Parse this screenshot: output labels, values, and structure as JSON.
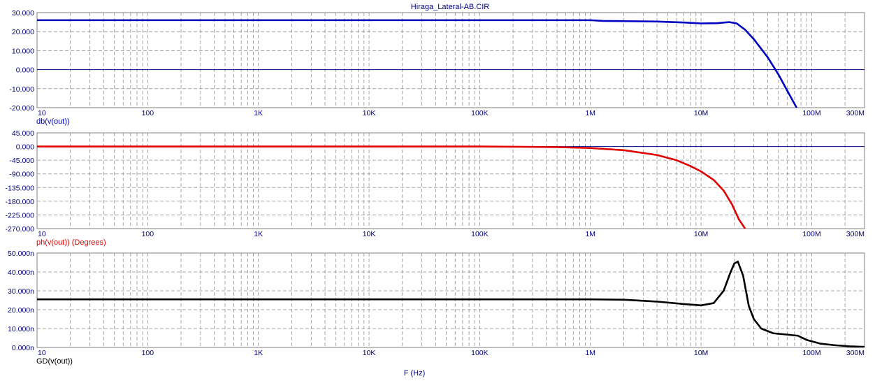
{
  "chart_data": {
    "type": "line",
    "title": "Hiraga_Lateral-AB.CIR",
    "xlabel": "F (Hz)",
    "x_scale": "log",
    "xlim": [
      10,
      300000000
    ],
    "x_tick_labels": [
      "10",
      "100",
      "1K",
      "10K",
      "100K",
      "1M",
      "10M",
      "100M",
      "300M"
    ],
    "grid": true,
    "panels": [
      {
        "ylabel": "db(v(out))",
        "color": "#0000c0",
        "ylim": [
          -20,
          30
        ],
        "y_tick_labels": [
          "30.000",
          "20.000",
          "10.000",
          "0.000",
          "-10.000",
          "-20.000"
        ],
        "series": [
          {
            "x": [
              10,
              100,
              1000,
              10000,
              100000,
              1000000,
              1300000,
              2000000,
              4000000,
              7000000,
              10000000,
              14000000,
              18000000,
              21000000,
              25000000,
              30000000,
              40000000,
              50000000,
              60000000,
              73000000
            ],
            "values": [
              26.0,
              26.0,
              26.0,
              26.0,
              26.0,
              26.0,
              25.6,
              25.5,
              25.3,
              24.8,
              24.3,
              24.4,
              25.0,
              24.3,
              21.0,
              16.0,
              6.5,
              -2.5,
              -11.0,
              -20.0
            ]
          }
        ]
      },
      {
        "ylabel": "ph(v(out)) (Degrees)",
        "color": "#e00000",
        "ylim": [
          -270,
          45
        ],
        "y_tick_labels": [
          "45.000",
          "0.000",
          "-45.000",
          "-90.000",
          "-135.000",
          "-180.000",
          "-225.000",
          "-270.000"
        ],
        "series": [
          {
            "x": [
              10,
              100,
              1000,
              10000,
              100000,
              250000,
              500000,
              1000000,
              2000000,
              4000000,
              6000000,
              8000000,
              10000000,
              13000000,
              16000000,
              19000000,
              22000000,
              25000000
            ],
            "values": [
              0,
              0,
              0,
              0,
              0,
              -1,
              -2,
              -5,
              -12,
              -28,
              -45,
              -64,
              -82,
              -110,
              -145,
              -190,
              -240,
              -270
            ]
          }
        ]
      },
      {
        "ylabel": "GD(v(out))",
        "color": "#000000",
        "ylim": [
          0,
          50
        ],
        "y_tick_labels": [
          "50.000n",
          "40.000n",
          "30.000n",
          "20.000n",
          "10.000n",
          "0.000n"
        ],
        "series": [
          {
            "x": [
              10,
              100,
              1000,
              10000,
              100000,
              1000000,
              2000000,
              4000000,
              7000000,
              10000000,
              13000000,
              16000000,
              18500000,
              20000000,
              21500000,
              24000000,
              27000000,
              30000000,
              35000000,
              45000000,
              60000000,
              75000000,
              90000000,
              120000000,
              160000000,
              220000000,
              300000000
            ],
            "values": [
              25.5,
              25.5,
              25.5,
              25.5,
              25.5,
              25.5,
              25.3,
              24.3,
              23.0,
              22.3,
              23.5,
              30.0,
              40.0,
              44.5,
              45.5,
              38.0,
              22.0,
              15.0,
              10.0,
              7.5,
              6.8,
              6.2,
              4.0,
              2.0,
              1.2,
              0.6,
              0.3
            ]
          }
        ]
      }
    ]
  }
}
